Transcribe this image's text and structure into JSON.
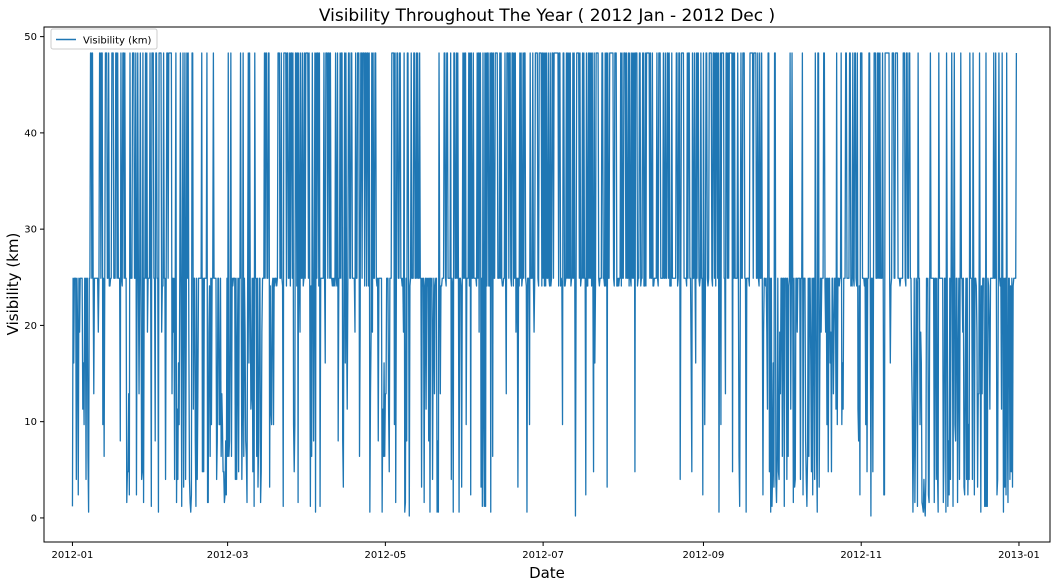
{
  "chart_data": {
    "type": "line",
    "title": "Visibility Throughout The Year ( 2012 Jan - 2012 Dec )",
    "xlabel": "Date",
    "ylabel": "Visibility (km)",
    "x_range": [
      "2011-12-21",
      "2013-01-13"
    ],
    "ylim": [
      -2.5,
      51
    ],
    "x_ticks": [
      "2012-01-01",
      "2012-03-01",
      "2012-05-01",
      "2012-07-01",
      "2012-09-01",
      "2012-11-01",
      "2013-01-01"
    ],
    "x_tick_labels": [
      "2012-01",
      "2012-03",
      "2012-05",
      "2012-07",
      "2012-09",
      "2012-11",
      "2013-01"
    ],
    "y_ticks": [
      0,
      10,
      20,
      30,
      40,
      50
    ],
    "y_tick_labels": [
      "0",
      "10",
      "20",
      "30",
      "40",
      "50"
    ],
    "legend_position": "top-left",
    "grid": false,
    "series": [
      {
        "name": "Visibility (km)",
        "color": "#1f77b4",
        "x_start": "2012-01-01",
        "x_end": "2012-12-31",
        "segments": [
          {
            "start": "2012-01-01",
            "end": "2012-01-08",
            "pattern": "low"
          },
          {
            "start": "2012-01-08",
            "end": "2012-01-22",
            "pattern": "mixed"
          },
          {
            "start": "2012-01-22",
            "end": "2012-02-20",
            "pattern": "mixed-low"
          },
          {
            "start": "2012-02-20",
            "end": "2012-03-15",
            "pattern": "low"
          },
          {
            "start": "2012-03-15",
            "end": "2012-04-28",
            "pattern": "mixed"
          },
          {
            "start": "2012-04-28",
            "end": "2012-05-03",
            "pattern": "low"
          },
          {
            "start": "2012-05-03",
            "end": "2012-06-30",
            "pattern": "mixed"
          },
          {
            "start": "2012-06-30",
            "end": "2012-08-20",
            "pattern": "high"
          },
          {
            "start": "2012-08-20",
            "end": "2012-09-25",
            "pattern": "mixed"
          },
          {
            "start": "2012-09-25",
            "end": "2012-10-25",
            "pattern": "low"
          },
          {
            "start": "2012-10-25",
            "end": "2012-11-20",
            "pattern": "mixed"
          },
          {
            "start": "2012-11-20",
            "end": "2012-12-31",
            "pattern": "low"
          }
        ],
        "baseline_value": 24.9,
        "high_value": 48.3,
        "mid_value": 24.1,
        "low_min": 0.2
      }
    ]
  }
}
